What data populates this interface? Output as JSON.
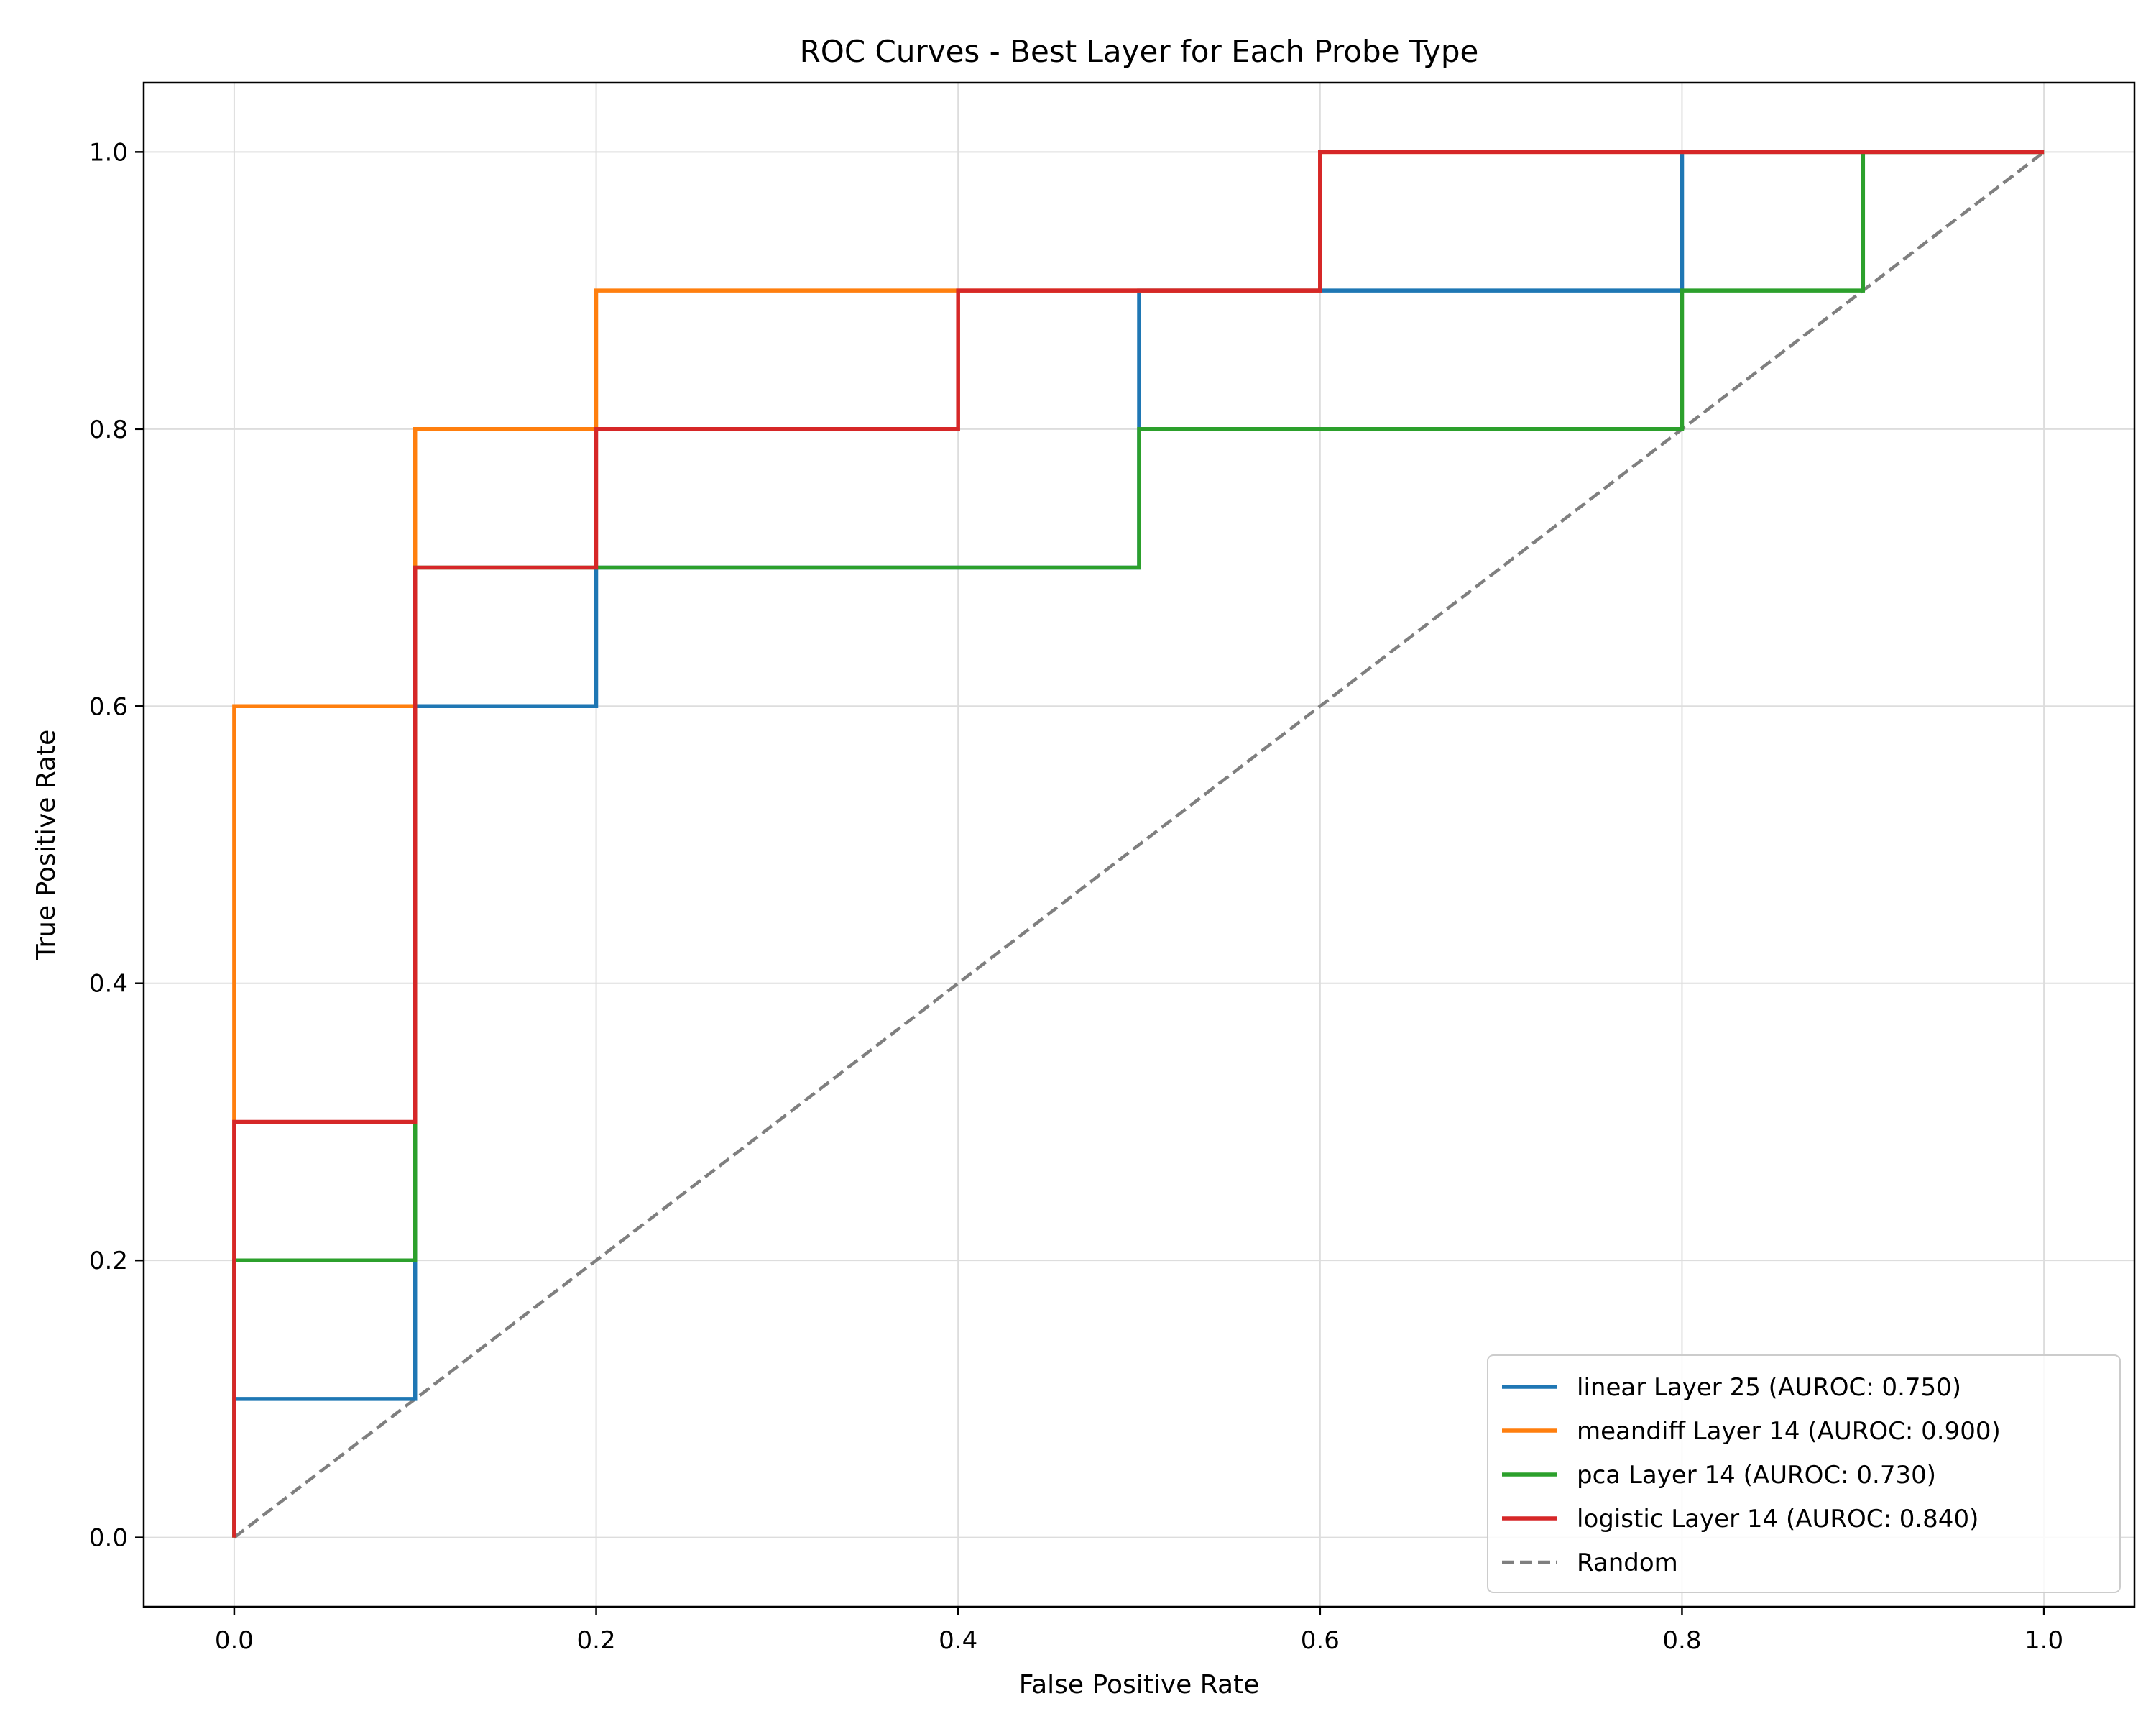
{
  "chart_data": {
    "type": "line",
    "title": "ROC Curves - Best Layer for Each Probe Type",
    "xlabel": "False Positive Rate",
    "ylabel": "True Positive Rate",
    "xlim": [
      -0.05,
      1.05
    ],
    "ylim": [
      -0.05,
      1.05
    ],
    "xticks": [
      0.0,
      0.2,
      0.4,
      0.6,
      0.8,
      1.0
    ],
    "yticks": [
      0.0,
      0.2,
      0.4,
      0.6,
      0.8,
      1.0
    ],
    "tick_labels": [
      "0.0",
      "0.2",
      "0.4",
      "0.6",
      "0.8",
      "1.0"
    ],
    "grid": true,
    "legend_position": "lower-right",
    "series": [
      {
        "name": "linear Layer 25 (AUROC: 0.750)",
        "color": "#1f77b4",
        "x": [
          0.0,
          0.0,
          0.1,
          0.1,
          0.2,
          0.2,
          0.5,
          0.5,
          0.8,
          0.8,
          1.0
        ],
        "y": [
          0.0,
          0.1,
          0.1,
          0.6,
          0.6,
          0.7,
          0.7,
          0.9,
          0.9,
          1.0,
          1.0
        ]
      },
      {
        "name": "meandiff Layer 14 (AUROC: 0.900)",
        "color": "#ff7f0e",
        "x": [
          0.0,
          0.0,
          0.1,
          0.1,
          0.2,
          0.2,
          0.4,
          0.4,
          0.6,
          0.6,
          1.0
        ],
        "y": [
          0.0,
          0.6,
          0.6,
          0.8,
          0.8,
          0.9,
          0.9,
          0.9,
          0.9,
          1.0,
          1.0
        ]
      },
      {
        "name": "pca Layer 14 (AUROC: 0.730)",
        "color": "#2ca02c",
        "x": [
          0.0,
          0.0,
          0.1,
          0.1,
          0.2,
          0.2,
          0.5,
          0.5,
          0.8,
          0.8,
          0.9,
          0.9,
          1.0
        ],
        "y": [
          0.0,
          0.2,
          0.2,
          0.7,
          0.7,
          0.7,
          0.7,
          0.8,
          0.8,
          0.9,
          0.9,
          1.0,
          1.0
        ]
      },
      {
        "name": "logistic Layer 14 (AUROC: 0.840)",
        "color": "#d62728",
        "x": [
          0.0,
          0.0,
          0.1,
          0.1,
          0.2,
          0.2,
          0.4,
          0.4,
          0.6,
          0.6,
          1.0
        ],
        "y": [
          0.0,
          0.3,
          0.3,
          0.7,
          0.7,
          0.8,
          0.8,
          0.9,
          0.9,
          1.0,
          1.0
        ]
      },
      {
        "name": "Random",
        "color": "#7f7f7f",
        "dashed": true,
        "x": [
          0.0,
          1.0
        ],
        "y": [
          0.0,
          1.0
        ]
      }
    ]
  }
}
